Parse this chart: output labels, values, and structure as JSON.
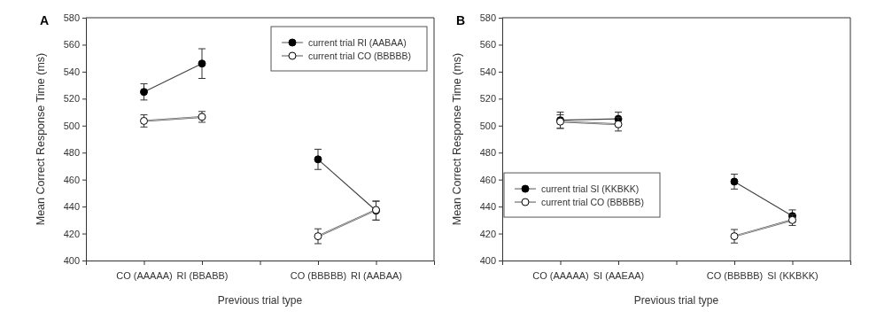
{
  "chart_data": [
    {
      "type": "line",
      "title": "A",
      "xlabel": "Previous trial type",
      "ylabel": "Mean Correct Response Time (ms)",
      "categories": [
        "CO (AAAAA)",
        "RI (BBABB)",
        null,
        "CO (BBBBB)",
        "RI (AABAA)"
      ],
      "ylim": [
        400,
        580
      ],
      "yticks": [
        400,
        420,
        440,
        460,
        480,
        500,
        520,
        540,
        560,
        580
      ],
      "legend": "top right",
      "marker": "circle",
      "grid": false,
      "series": [
        {
          "name": "current trial RI (AABAA)",
          "color": "#000000",
          "values": [
            525,
            546,
            null,
            475,
            437
          ],
          "errors": [
            6,
            11,
            null,
            7.5,
            7
          ]
        },
        {
          "name": "current trial CO (BBBBB)",
          "color": "#ffffff",
          "values": [
            503.5,
            506.5,
            null,
            418,
            437.5
          ],
          "errors": [
            4.5,
            4,
            null,
            5.5,
            [
              430,
              444
            ]
          ]
        }
      ]
    },
    {
      "type": "line",
      "title": "B",
      "xlabel": "Previous trial type",
      "ylabel": "Mean Correct Response Time (ms)",
      "categories": [
        "CO (AAAAA)",
        "SI (AAEAA)",
        null,
        "CO (BBBBB)",
        "SI (KKBKK)"
      ],
      "ylim": [
        400,
        580
      ],
      "yticks": [
        400,
        420,
        440,
        460,
        480,
        500,
        520,
        540,
        560,
        580
      ],
      "legend": "left",
      "marker": "circle",
      "grid": false,
      "series": [
        {
          "name": "current trial SI (KKBKK)",
          "color": "#000000",
          "values": [
            504,
            505,
            null,
            458.5,
            433
          ],
          "errors": [
            6,
            5,
            null,
            5.5,
            4.5
          ]
        },
        {
          "name": "current trial CO (BBBBB)",
          "color": "#ffffff",
          "values": [
            503,
            501,
            null,
            418,
            430
          ],
          "errors": [
            5,
            5,
            null,
            5,
            4
          ]
        }
      ]
    }
  ]
}
